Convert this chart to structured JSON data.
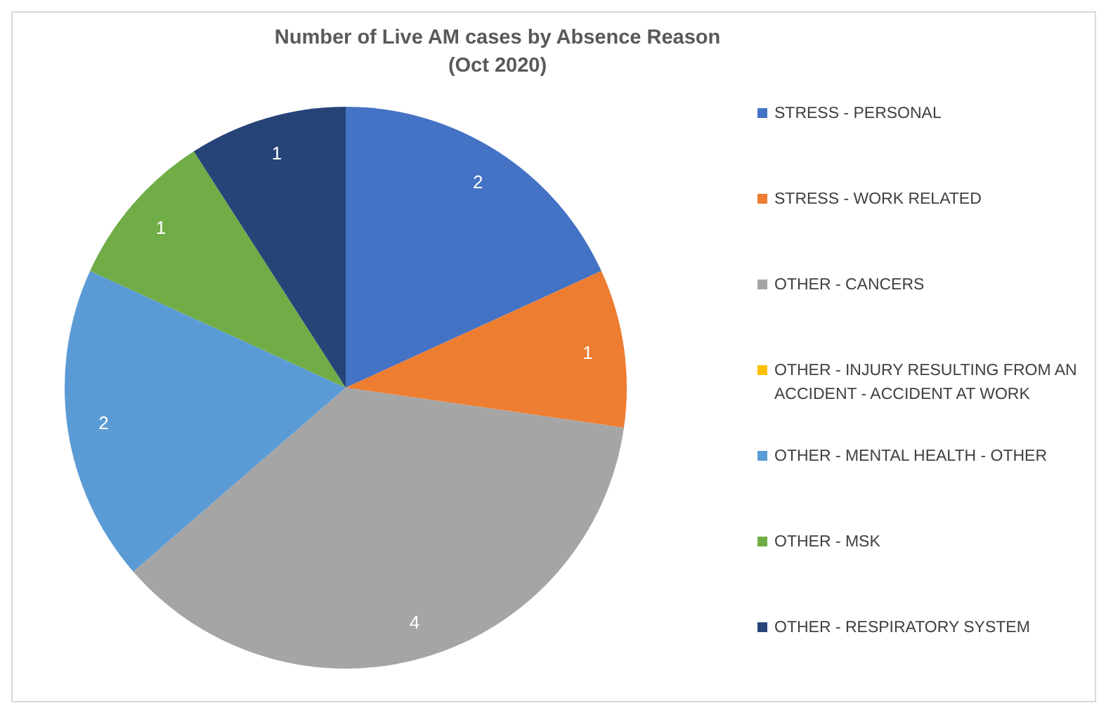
{
  "chart_data": {
    "type": "pie",
    "title": "Number of Live AM cases by Absence Reason\n(Oct 2020)",
    "categories": [
      "STRESS - PERSONAL",
      "STRESS - WORK RELATED",
      "OTHER - CANCERS",
      "OTHER - INJURY RESULTING FROM AN ACCIDENT - ACCIDENT AT WORK",
      "OTHER - MENTAL HEALTH - OTHER",
      "OTHER - MSK",
      "OTHER - RESPIRATORY SYSTEM"
    ],
    "values": [
      2,
      1,
      4,
      0,
      2,
      1,
      1
    ],
    "value_labels": [
      "2",
      "1",
      "4",
      null,
      "2",
      "1",
      "1"
    ],
    "colors": [
      "#4472c4",
      "#ed7d31",
      "#a5a5a5",
      "#ffc000",
      "#5b9bd5",
      "#70ad47",
      "#264478"
    ],
    "legend": "right"
  }
}
